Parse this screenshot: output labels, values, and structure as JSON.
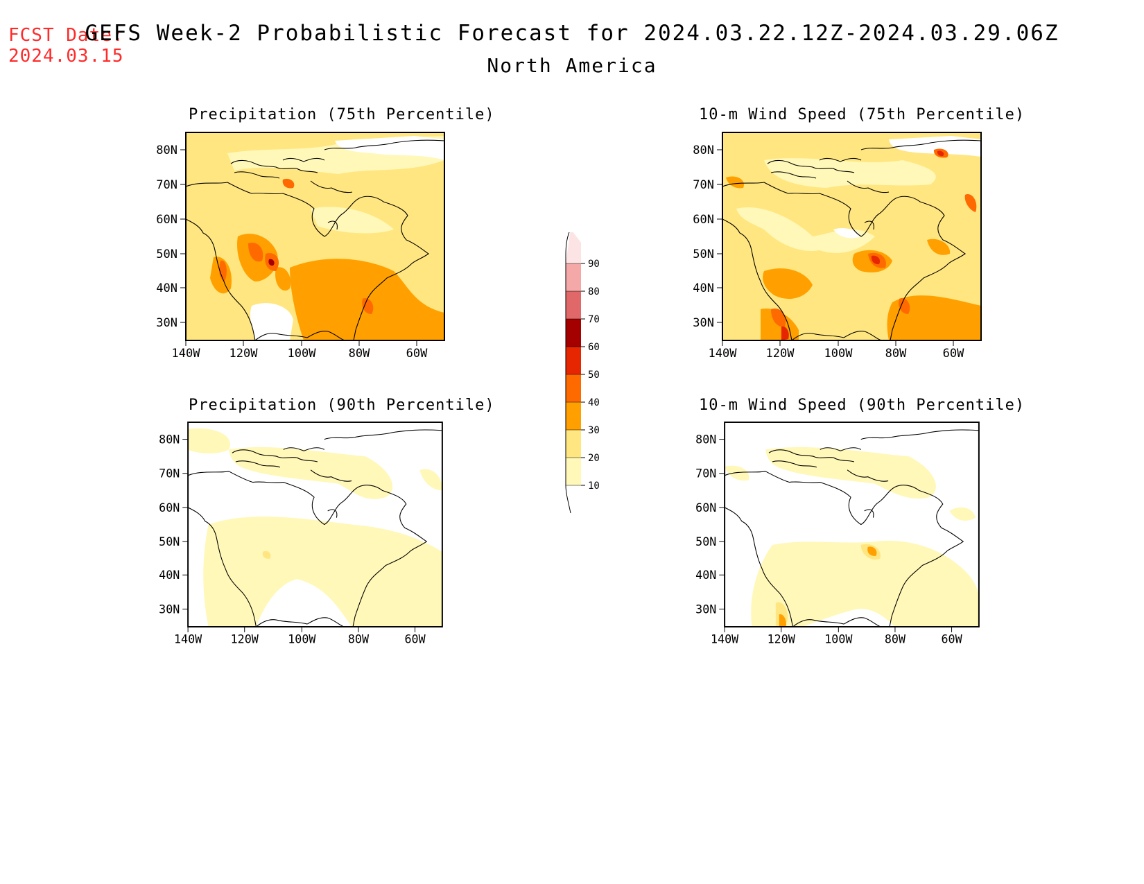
{
  "header": {
    "fcst_label": "FCST Date:",
    "fcst_date": "2024.03.15",
    "title": "GEFS Week-2 Probabilistic Forecast for 2024.03.22.12Z-2024.03.29.06Z",
    "region": "North America"
  },
  "panels": [
    {
      "title": "Precipitation (75th Percentile)",
      "level": "high",
      "variant": "precip"
    },
    {
      "title": "10-m Wind Speed (75th Percentile)",
      "level": "high",
      "variant": "wind"
    },
    {
      "title": "Precipitation (90th Percentile)",
      "level": "low",
      "variant": "precip"
    },
    {
      "title": "10-m Wind Speed (90th Percentile)",
      "level": "low",
      "variant": "wind"
    }
  ],
  "axes": {
    "lat_ticks": [
      "80N",
      "70N",
      "60N",
      "50N",
      "40N",
      "30N"
    ],
    "lon_ticks": [
      "140W",
      "120W",
      "100W",
      "80W",
      "60W"
    ]
  },
  "colorbar": {
    "levels": [
      "10",
      "20",
      "30",
      "40",
      "50",
      "60",
      "70",
      "80",
      "90"
    ],
    "colors": [
      "#fff8b8",
      "#ffe680",
      "#ffa000",
      "#ff6a00",
      "#e62600",
      "#a50000",
      "#e06868",
      "#f4a8a8",
      "#fde4e4"
    ]
  }
}
